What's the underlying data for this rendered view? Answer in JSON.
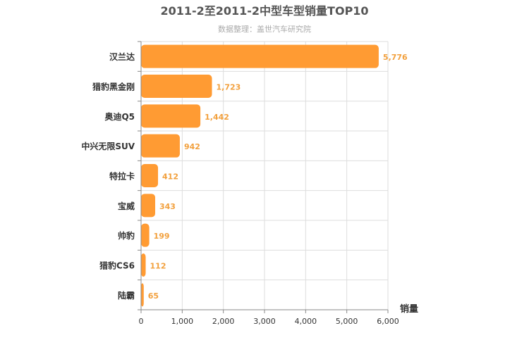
{
  "chart_data": {
    "type": "bar",
    "orientation": "horizontal",
    "title": "2011-2至2011-2中型车型销量TOP10",
    "subtitle": "数据整理：盖世汽车研究院",
    "categories": [
      "汉兰达",
      "猎豹黑金刚",
      "奥迪Q5",
      "中兴无限SUV",
      "特拉卡",
      "宝威",
      "帅豹",
      "猎豹CS6",
      "陆霸"
    ],
    "values": [
      5776,
      1723,
      1442,
      942,
      412,
      343,
      199,
      112,
      65
    ],
    "value_labels": [
      "5,776",
      "1,723",
      "1,442",
      "942",
      "412",
      "343",
      "199",
      "112",
      "65"
    ],
    "xlabel": "销量",
    "ylabel": "",
    "xlim": [
      0,
      6000
    ],
    "xticks": [
      0,
      1000,
      2000,
      3000,
      4000,
      5000,
      6000
    ],
    "xtick_labels": [
      "0",
      "1,000",
      "2,000",
      "3,000",
      "4,000",
      "5,000",
      "6,000"
    ],
    "grid": true,
    "bar_color": "#ff9b33",
    "label_color": "#f2a03d"
  }
}
